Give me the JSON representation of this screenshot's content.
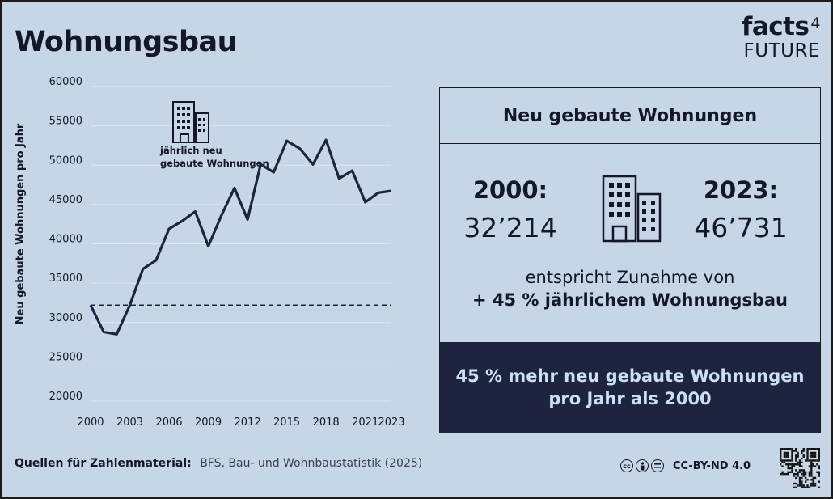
{
  "title": "Wohnungsbau",
  "logo": {
    "main": "facts",
    "sup": "4",
    "sub": "FUTURE"
  },
  "chart_data": {
    "type": "line",
    "ylabel": "Neu gebaute Wohnungen pro Jahr",
    "ylim": [
      20000,
      60000
    ],
    "yticks": [
      60000,
      55000,
      50000,
      45000,
      40000,
      35000,
      30000,
      25000,
      20000
    ],
    "xticks": [
      2000,
      2003,
      2006,
      2009,
      2012,
      2015,
      2018,
      2021,
      2023
    ],
    "x": [
      2000,
      2001,
      2002,
      2003,
      2004,
      2005,
      2006,
      2007,
      2008,
      2009,
      2010,
      2011,
      2012,
      2013,
      2014,
      2015,
      2016,
      2017,
      2018,
      2019,
      2020,
      2021,
      2022,
      2023
    ],
    "values": [
      32214,
      28800,
      28500,
      32200,
      36800,
      37900,
      41900,
      42900,
      44100,
      39700,
      43600,
      47100,
      43100,
      50100,
      49100,
      53100,
      52100,
      50100,
      53200,
      48300,
      49300,
      45300,
      46500,
      46731
    ],
    "reference_line": 32214,
    "annotation": [
      "jährlich neu",
      "gebaute Wohnungen"
    ],
    "grid": true,
    "colors": {
      "line": "#1d2440",
      "grid": "#dde7f1"
    }
  },
  "panel": {
    "heading": "Neu gebaute Wohnungen",
    "left": {
      "label": "2000:",
      "value": "32’214"
    },
    "right": {
      "label": "2023:",
      "value": "46’731"
    },
    "increase_line1": "entspricht Zunahme von",
    "increase_line2": "+ 45 % jährlichem Wohnungsbau",
    "highlight_line1": "45 % mehr neu gebaute Wohnungen",
    "highlight_line2": "pro Jahr als 2000"
  },
  "footer": {
    "source_label": "Quellen für Zahlenmaterial:",
    "source_text": "BFS, Bau- und Wohnbaustatistik (2025)",
    "license": "CC-BY-ND 4.0"
  },
  "icons": [
    "building-icon",
    "cc-icon",
    "by-icon",
    "nd-icon",
    "qr-code"
  ],
  "colors": {
    "background": "#c7d6e6",
    "dark_panel": "#1d2440",
    "highlight_text": "#cbe0f5"
  }
}
